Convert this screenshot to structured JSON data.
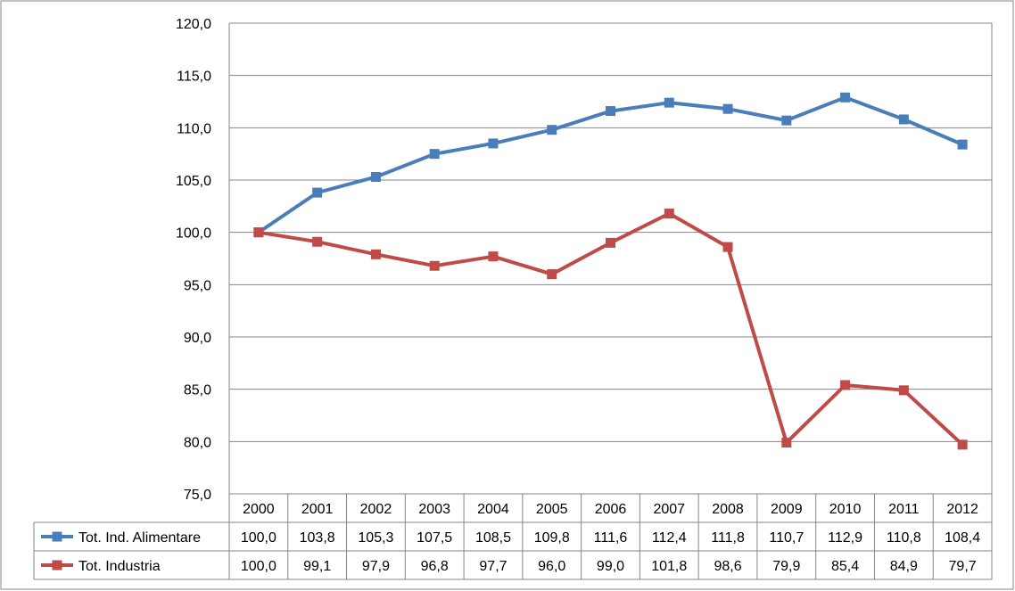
{
  "chart_data": {
    "type": "line",
    "title": "",
    "xlabel": "",
    "ylabel": "",
    "ylim": [
      75,
      120
    ],
    "y_tick_step": 5,
    "y_tick_labels": [
      "75,0",
      "80,0",
      "85,0",
      "90,0",
      "95,0",
      "100,0",
      "105,0",
      "110,0",
      "115,0",
      "120,0"
    ],
    "grid": true,
    "legend": "data-table",
    "categories": [
      "2000",
      "2001",
      "2002",
      "2003",
      "2004",
      "2005",
      "2006",
      "2007",
      "2008",
      "2009",
      "2010",
      "2011",
      "2012"
    ],
    "series": [
      {
        "name": "Tot. Ind. Alimentare",
        "color": "#4a7ebb",
        "values": [
          100.0,
          103.8,
          105.3,
          107.5,
          108.5,
          109.8,
          111.6,
          112.4,
          111.8,
          110.7,
          112.9,
          110.8,
          108.4
        ],
        "labels": [
          "100,0",
          "103,8",
          "105,3",
          "107,5",
          "108,5",
          "109,8",
          "111,6",
          "112,4",
          "111,8",
          "110,7",
          "112,9",
          "110,8",
          "108,4"
        ]
      },
      {
        "name": "Tot. Industria",
        "color": "#be4b48",
        "values": [
          100.0,
          99.1,
          97.9,
          96.8,
          97.7,
          96.0,
          99.0,
          101.8,
          98.6,
          79.9,
          85.4,
          84.9,
          79.7
        ],
        "labels": [
          "100,0",
          "99,1",
          "97,9",
          "96,8",
          "97,7",
          "96,0",
          "99,0",
          "101,8",
          "98,6",
          "79,9",
          "85,4",
          "84,9",
          "79,7"
        ]
      }
    ]
  }
}
